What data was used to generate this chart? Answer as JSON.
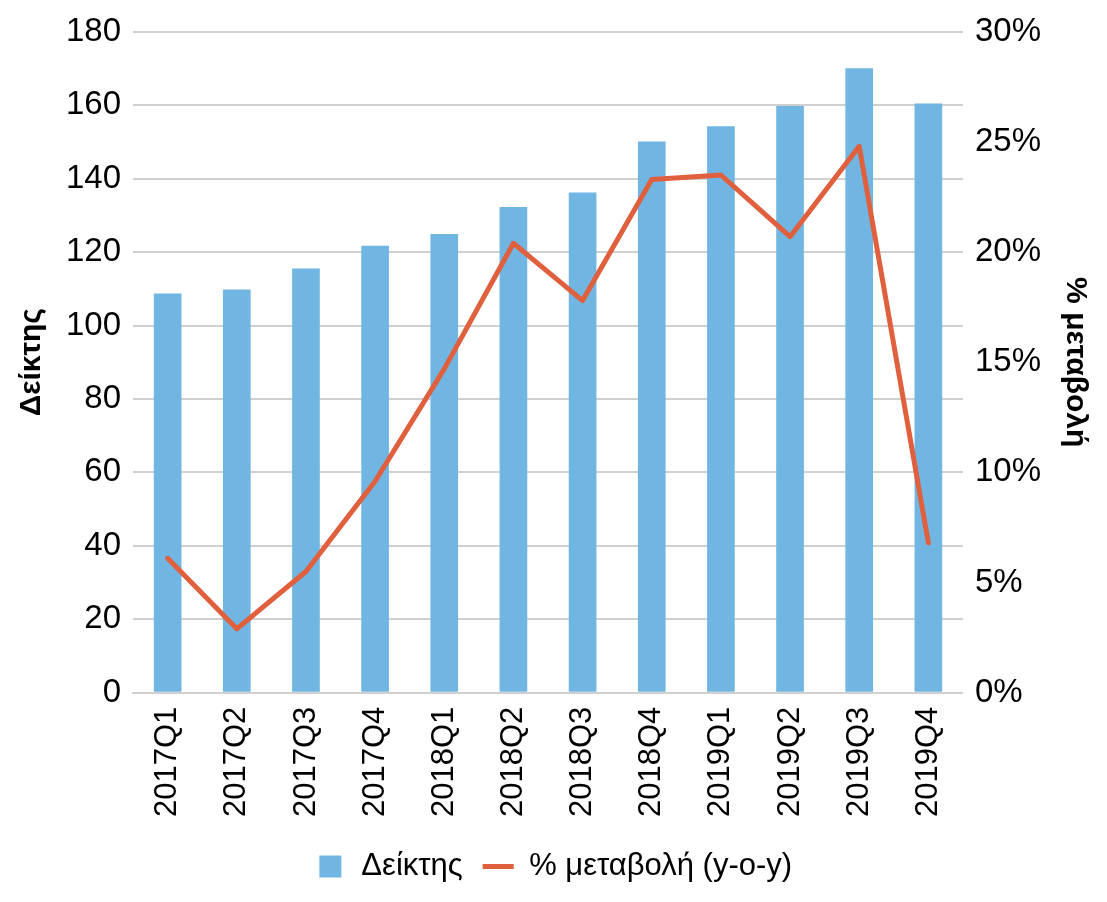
{
  "chart_data": {
    "type": "bar",
    "categories": [
      "2017Q1",
      "2017Q2",
      "2017Q3",
      "2017Q4",
      "2018Q1",
      "2018Q2",
      "2018Q3",
      "2018Q4",
      "2019Q1",
      "2019Q2",
      "2019Q3",
      "2019Q4"
    ],
    "series": [
      {
        "name": "Δείκτης",
        "color": "#71b6e2",
        "values": [
          108.7,
          109.8,
          115.5,
          121.7,
          124.9,
          132.3,
          136.2,
          150.1,
          154.3,
          159.8,
          170.1,
          160.5
        ]
      },
      {
        "name": "% μεταβολή (y-o-y)",
        "type": "line",
        "axis": "y2",
        "color": "#e0603e",
        "values": [
          6.1,
          2.9,
          5.5,
          9.6,
          14.7,
          20.4,
          17.8,
          23.3,
          23.5,
          20.7,
          24.8,
          6.8
        ]
      }
    ],
    "ylabel": "Δείκτης",
    "y2label": "% μεταβολή",
    "ylim": [
      0,
      180
    ],
    "yticks": [
      0,
      20,
      40,
      60,
      80,
      100,
      120,
      140,
      160,
      180
    ],
    "y2lim": [
      0,
      30
    ],
    "y2ticks": [
      {
        "value": 0,
        "label": "0%"
      },
      {
        "value": 5,
        "label": "5%"
      },
      {
        "value": 10,
        "label": "10%"
      },
      {
        "value": 15,
        "label": "15%"
      },
      {
        "value": 20,
        "label": "20%"
      },
      {
        "value": 25,
        "label": "25%"
      },
      {
        "value": 30,
        "label": "30%"
      }
    ],
    "grid": "y",
    "legend": "bottom",
    "marker": "none",
    "line_style": "solid"
  }
}
